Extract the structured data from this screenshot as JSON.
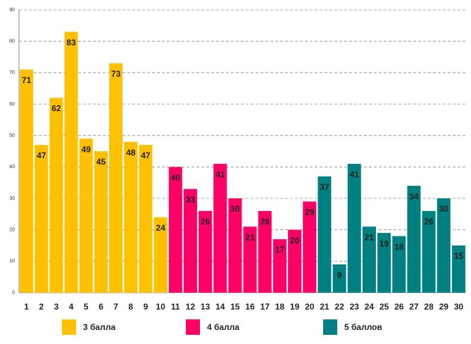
{
  "chart_data": {
    "type": "bar",
    "categories": [
      "1",
      "2",
      "3",
      "4",
      "5",
      "6",
      "7",
      "8",
      "9",
      "10",
      "11",
      "12",
      "13",
      "14",
      "15",
      "16",
      "17",
      "18",
      "19",
      "20",
      "21",
      "22",
      "23",
      "24",
      "25",
      "26",
      "27",
      "28",
      "29",
      "30"
    ],
    "series": [
      {
        "name": "3 балла",
        "color": "#FFC000",
        "values": [
          71,
          47,
          62,
          83,
          49,
          45,
          73,
          48,
          47,
          24,
          null,
          null,
          null,
          null,
          null,
          null,
          null,
          null,
          null,
          null,
          null,
          null,
          null,
          null,
          null,
          null,
          null,
          null,
          null,
          null
        ]
      },
      {
        "name": "4 балла",
        "color": "#FF0066",
        "values": [
          null,
          null,
          null,
          null,
          null,
          null,
          null,
          null,
          null,
          null,
          40,
          33,
          26,
          41,
          30,
          21,
          26,
          17,
          20,
          29,
          null,
          null,
          null,
          null,
          null,
          null,
          null,
          null,
          null,
          null
        ]
      },
      {
        "name": "5 баллов",
        "color": "#008080",
        "values": [
          null,
          null,
          null,
          null,
          null,
          null,
          null,
          null,
          null,
          null,
          null,
          null,
          null,
          null,
          null,
          null,
          null,
          null,
          null,
          null,
          37,
          9,
          41,
          21,
          19,
          18,
          34,
          26,
          30,
          15
        ]
      }
    ],
    "ylim": [
      0,
      90
    ],
    "yticks": [
      0,
      10,
      20,
      30,
      40,
      50,
      60,
      70,
      80,
      90
    ],
    "grid": true,
    "legend": "bottom"
  }
}
